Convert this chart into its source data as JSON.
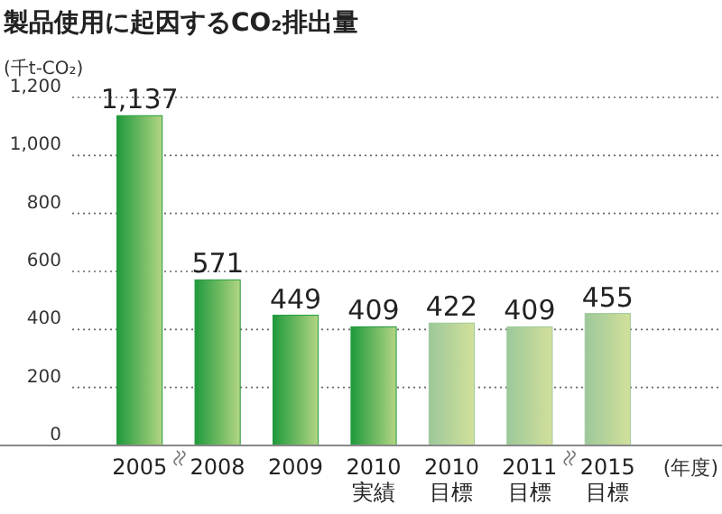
{
  "chart_data": {
    "type": "bar",
    "title": "製品使用に起因するCO₂排出量",
    "ylabel": "(千t-CO₂)",
    "xlabel": "(年度)",
    "categories": [
      "2005",
      "2008",
      "2009",
      "2010\n実績",
      "2010\n目標",
      "2011\n目標",
      "2015\n目標"
    ],
    "values": [
      1137,
      571,
      449,
      409,
      422,
      409,
      455
    ],
    "colors": [
      "#1f9a3c",
      "#1f9a3c",
      "#1f9a3c",
      "#1f9a3c",
      "#9cc89a",
      "#9cc89a",
      "#9cc89a"
    ],
    "value_labels": [
      "1,137",
      "571",
      "449",
      "409",
      "422",
      "409",
      "455"
    ],
    "ylim": [
      0,
      1200
    ],
    "yticks": [
      0,
      {
        "value": 200,
        "label": "200"
      },
      {
        "value": 400,
        "label": "400"
      },
      {
        "value": 600,
        "label": "600"
      },
      {
        "value": 800,
        "label": "800"
      },
      {
        "value": 1000,
        "label": "1,000"
      },
      {
        "value": 1200,
        "label": "1,200"
      }
    ],
    "grid": "y"
  }
}
